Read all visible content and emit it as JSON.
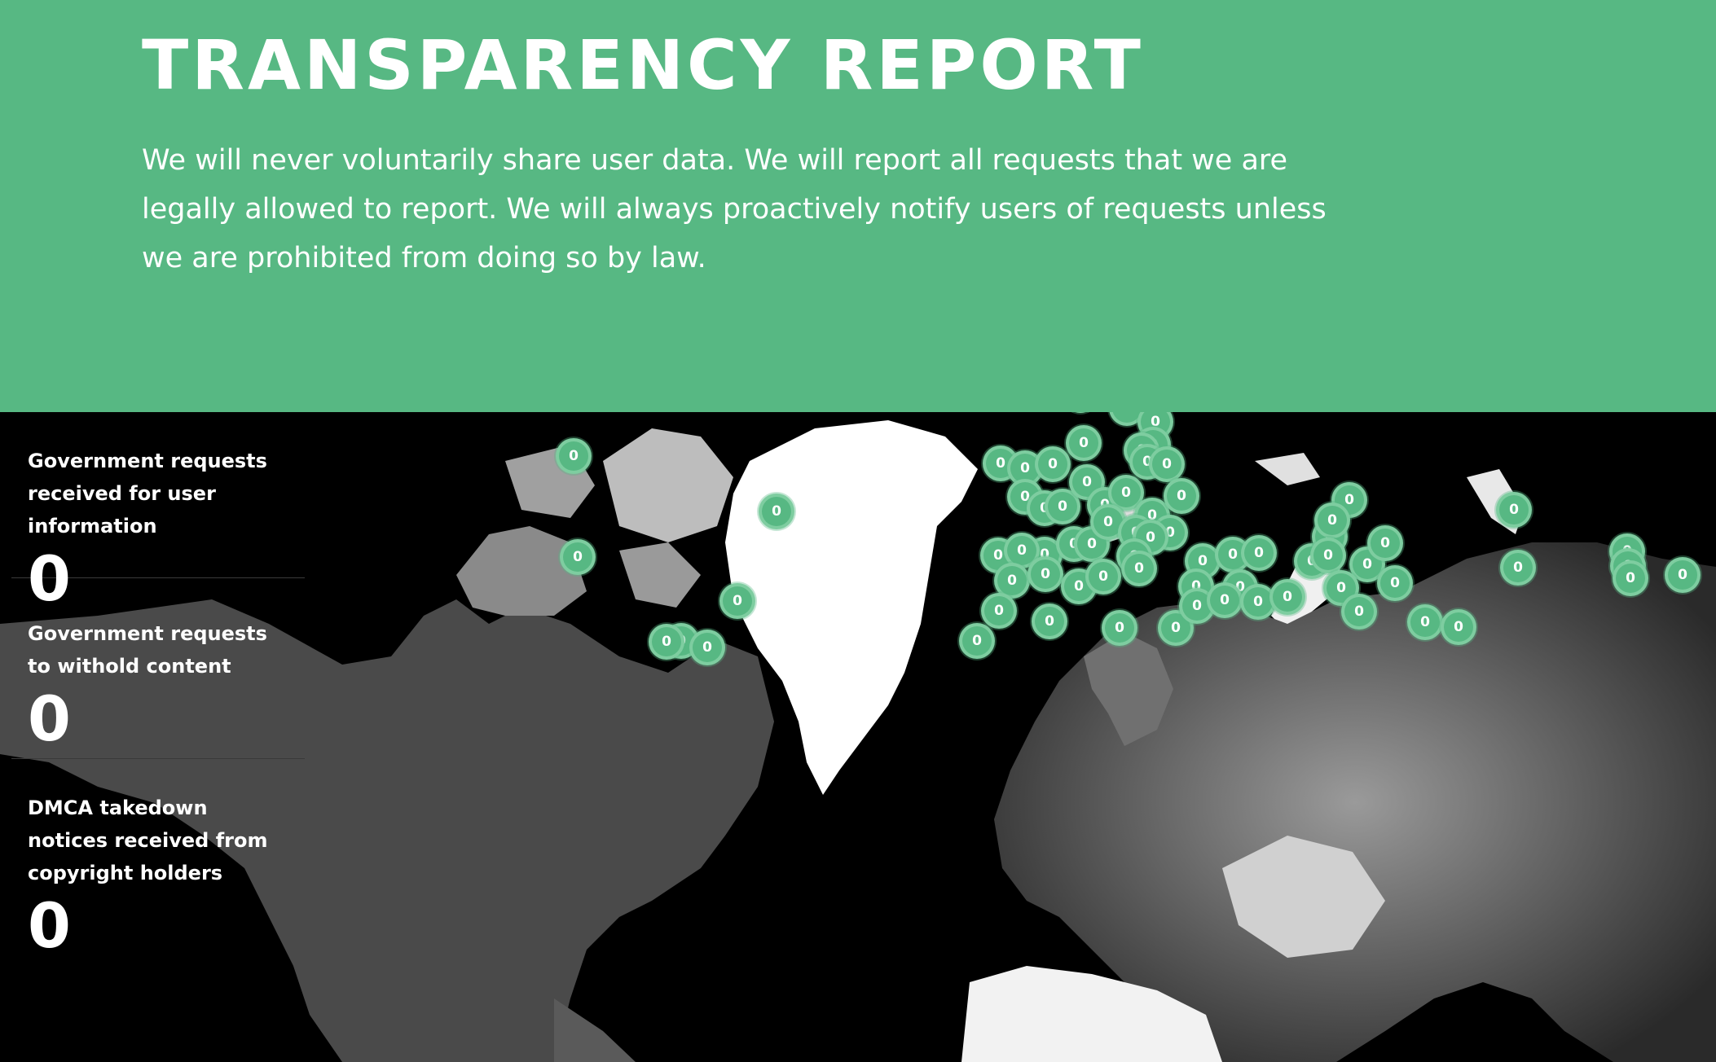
{
  "header": {
    "title": "TRANSPARENCY REPORT",
    "description": "We will never voluntarily share user data. We will report all requests that we are legally allowed to report. We will always proactively notify users of requests unless we are prohibited from doing so by law."
  },
  "stats": [
    {
      "label": "Government requests received for user information",
      "value": "0"
    },
    {
      "label": "Government requests to withold content",
      "value": "0"
    },
    {
      "label": "DMCA takedown notices received from copyright holders",
      "value": "0"
    }
  ],
  "map": {
    "marker_label": "0",
    "accent_color": "#57b883"
  }
}
